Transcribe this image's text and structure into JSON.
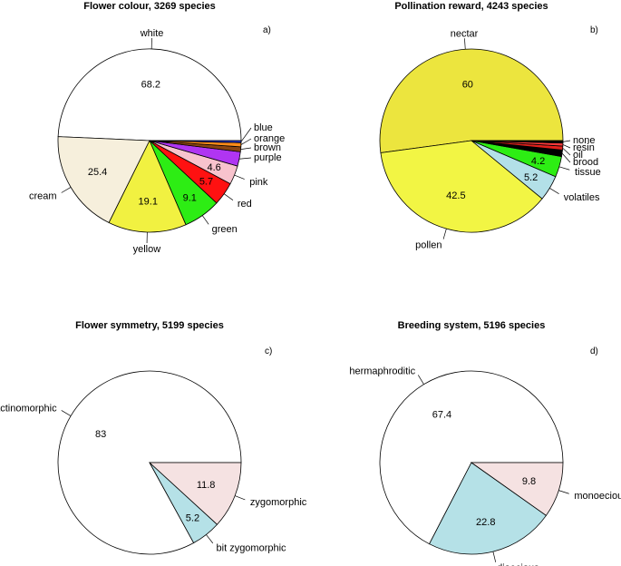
{
  "chart_data": [
    {
      "type": "pie",
      "panel": "a)",
      "title": "Flower colour, 3269 species",
      "slices": [
        {
          "label": "white",
          "value": 68.2,
          "color": "#ffffff",
          "show_value": true
        },
        {
          "label": "cream",
          "value": 25.4,
          "color": "#f6efdc",
          "show_value": true
        },
        {
          "label": "yellow",
          "value": 19.1,
          "color": "#f1f141",
          "show_value": true
        },
        {
          "label": "green",
          "value": 9.1,
          "color": "#2ded14",
          "show_value": true
        },
        {
          "label": "red",
          "value": 5.7,
          "color": "#ff1111",
          "show_value": true
        },
        {
          "label": "pink",
          "value": 4.6,
          "color": "#f8c3cd",
          "show_value": true
        },
        {
          "label": "purple",
          "value": 3.5,
          "color": "#b035f2",
          "show_value": false
        },
        {
          "label": "brown",
          "value": 1.2,
          "color": "#8b4513",
          "show_value": false
        },
        {
          "label": "orange",
          "value": 1.0,
          "color": "#ff8c1a",
          "show_value": false
        },
        {
          "label": "blue",
          "value": 0.5,
          "color": "#2438d8",
          "show_value": false
        }
      ]
    },
    {
      "type": "pie",
      "panel": "b)",
      "title": "Pollination reward, 4243 species",
      "slices": [
        {
          "label": "nectar",
          "value": 60,
          "color": "#ece53e",
          "show_value": true
        },
        {
          "label": "pollen",
          "value": 42.5,
          "color": "#f2f544",
          "show_value": true
        },
        {
          "label": "volatiles",
          "value": 5.2,
          "color": "#b3e0e8",
          "show_value": true
        },
        {
          "label": "tissue",
          "value": 4.2,
          "color": "#2ded14",
          "show_value": true
        },
        {
          "label": "brood",
          "value": 1.3,
          "color": "#000000",
          "show_value": false
        },
        {
          "label": "oil",
          "value": 0.8,
          "color": "#e2211c",
          "show_value": false
        },
        {
          "label": "resin",
          "value": 0.6,
          "color": "#ff3b3b",
          "show_value": false
        },
        {
          "label": "none",
          "value": 0.5,
          "color": "#000000",
          "show_value": false
        }
      ]
    },
    {
      "type": "pie",
      "panel": "c)",
      "title": "Flower symmetry, 5199 species",
      "slices": [
        {
          "label": "actinomorphic",
          "value": 83,
          "color": "#ffffff",
          "show_value": true
        },
        {
          "label": "bit zygomorphic",
          "value": 5.2,
          "color": "#b5e1e7",
          "show_value": true
        },
        {
          "label": "zygomorphic",
          "value": 11.8,
          "color": "#f5e2e2",
          "show_value": true
        }
      ]
    },
    {
      "type": "pie",
      "panel": "d)",
      "title": "Breeding system, 5196 species",
      "slices": [
        {
          "label": "hermaphroditic",
          "value": 67.4,
          "color": "#ffffff",
          "show_value": true
        },
        {
          "label": "dioecious",
          "value": 22.8,
          "color": "#b5e1e7",
          "show_value": true
        },
        {
          "label": "monoecious",
          "value": 9.8,
          "color": "#f5e2e2",
          "show_value": true
        }
      ]
    }
  ]
}
